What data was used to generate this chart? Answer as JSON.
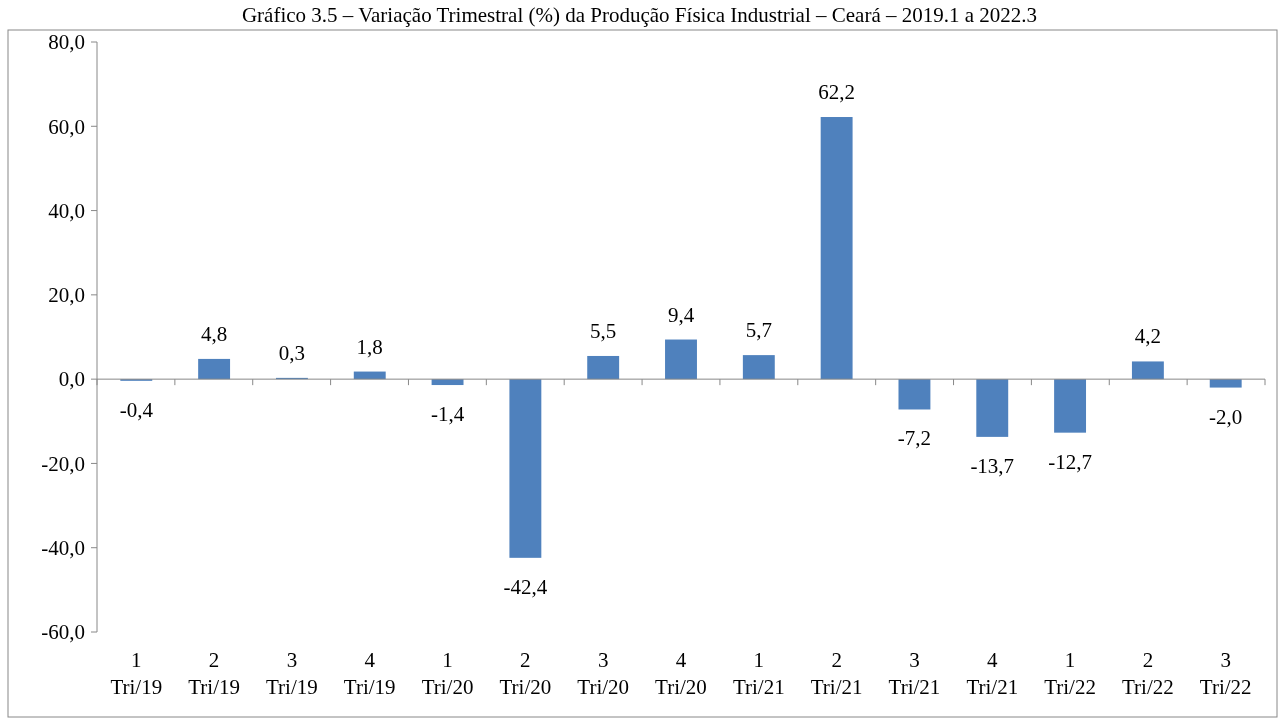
{
  "chart_data": {
    "type": "bar",
    "title": "Gráfico 3.5 – Variação Trimestral (%) da Produção Física Industrial – Ceará – 2019.1 a 2022.3",
    "categories": [
      "1 Tri/19",
      "2 Tri/19",
      "3 Tri/19",
      "4 Tri/19",
      "1 Tri/20",
      "2 Tri/20",
      "3 Tri/20",
      "4 Tri/20",
      "1 Tri/21",
      "2 Tri/21",
      "3 Tri/21",
      "4 Tri/21",
      "1 Tri/22",
      "2 Tri/22",
      "3 Tri/22"
    ],
    "values": [
      -0.4,
      4.8,
      0.3,
      1.8,
      -1.4,
      -42.4,
      5.5,
      9.4,
      5.7,
      62.2,
      -7.2,
      -13.7,
      -12.7,
      4.2,
      -2.0
    ],
    "value_labels": [
      "-0,4",
      "4,8",
      "0,3",
      "1,8",
      "-1,4",
      "-42,4",
      "5,5",
      "9,4",
      "5,7",
      "62,2",
      "-7,2",
      "-13,7",
      "-12,7",
      "4,2",
      "-2,0"
    ],
    "color": "#4f81bd",
    "ylim": [
      -60,
      80
    ],
    "yticks": [
      {
        "value": -60,
        "label": "-60,0"
      },
      {
        "value": -40,
        "label": "-40,0"
      },
      {
        "value": -20,
        "label": "-20,0"
      },
      {
        "value": 0,
        "label": "0,0"
      },
      {
        "value": 20,
        "label": "20,0"
      },
      {
        "value": 40,
        "label": "40,0"
      },
      {
        "value": 60,
        "label": "60,0"
      },
      {
        "value": 80,
        "label": "80,0"
      }
    ]
  }
}
